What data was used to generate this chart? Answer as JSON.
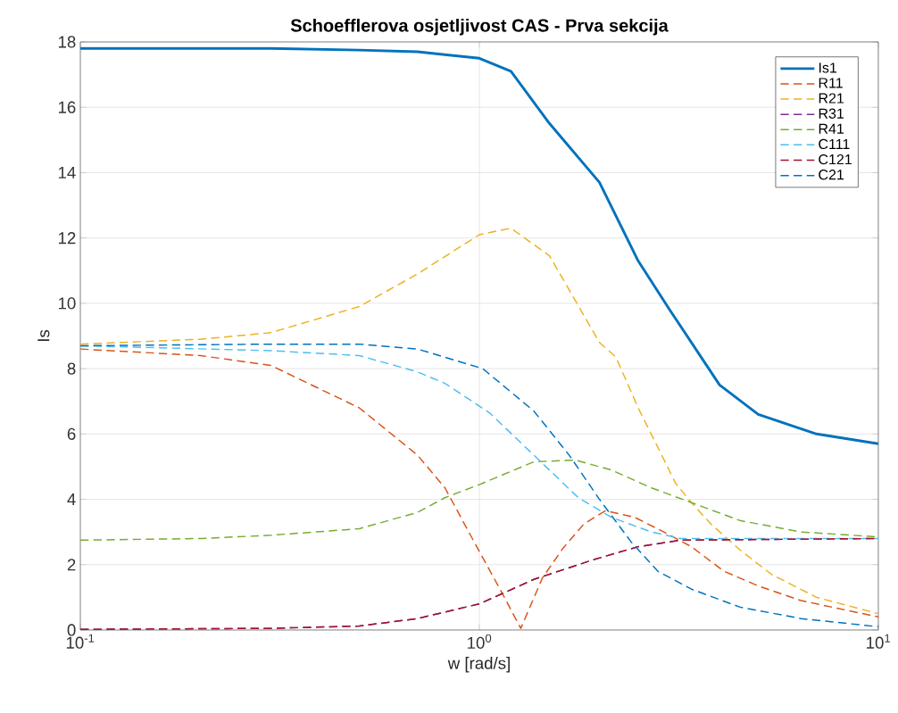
{
  "chart_data": {
    "type": "line",
    "title": "Schoefflerova osjetljivost CAS - Prva sekcija",
    "xlabel": "w [rad/s]",
    "ylabel": "Is",
    "log": "x",
    "grid": true,
    "legend": "top right",
    "xlim": [
      0.1,
      10
    ],
    "xticks": [
      {
        "value": 0.1,
        "label": "10$^{-1}$"
      },
      {
        "value": 1,
        "label": "10$^{0}$"
      },
      {
        "value": 10,
        "label": "10$^{1}$"
      }
    ],
    "ylim": [
      0,
      18
    ],
    "yticks": [
      0,
      2,
      4,
      6,
      8,
      10,
      12,
      14,
      16,
      18
    ],
    "series": [
      {
        "name": "Is1",
        "color": "#0072bd",
        "line_style": "solid",
        "x": [
          0.1,
          0.3,
          0.5,
          0.7,
          1,
          1.2,
          1.5,
          2,
          2.5,
          3,
          4,
          5,
          7,
          10
        ],
        "values": [
          17.8,
          17.8,
          17.75,
          17.7,
          17.5,
          17.1,
          15.5,
          13.7,
          11.3,
          9.8,
          7.5,
          6.6,
          6.0,
          5.7
        ]
      },
      {
        "name": "R11",
        "color": "#d95319",
        "line_style": "dashed",
        "x": [
          0.1,
          0.2,
          0.3,
          0.5,
          0.7,
          0.82,
          0.97,
          1.15,
          1.27,
          1.44,
          1.62,
          1.83,
          2.07,
          2.45,
          2.9,
          3.4,
          4.1,
          5,
          6.4,
          10
        ],
        "values": [
          8.6,
          8.4,
          8.1,
          6.8,
          5.35,
          4.35,
          2.7,
          1.05,
          0.05,
          1.6,
          2.5,
          3.25,
          3.65,
          3.45,
          3.0,
          2.55,
          1.8,
          1.35,
          0.9,
          0.4
        ]
      },
      {
        "name": "R21",
        "color": "#edb120",
        "line_style": "dashed",
        "x": [
          0.1,
          0.2,
          0.3,
          0.5,
          0.7,
          1,
          1.2,
          1.5,
          2,
          2.2,
          2.5,
          2.8,
          3.1,
          3.4,
          3.8,
          4.5,
          5.4,
          7,
          10
        ],
        "values": [
          8.75,
          8.9,
          9.1,
          9.9,
          10.9,
          12.1,
          12.3,
          11.45,
          8.8,
          8.35,
          6.8,
          5.6,
          4.5,
          3.9,
          3.25,
          2.45,
          1.7,
          1.0,
          0.5
        ]
      },
      {
        "name": "R31",
        "color": "#7e2f8e",
        "line_style": "dashed",
        "x": [
          0.1,
          0.3,
          0.5,
          0.7,
          1,
          1.37,
          1.93,
          2.5,
          3.2,
          10
        ],
        "values": [
          0.02,
          0.05,
          0.12,
          0.35,
          0.8,
          1.55,
          2.15,
          2.55,
          2.75,
          2.8
        ]
      },
      {
        "name": "R41",
        "color": "#77ac30",
        "line_style": "dashed",
        "x": [
          0.1,
          0.2,
          0.3,
          0.5,
          0.7,
          0.82,
          1,
          1.37,
          1.74,
          2.14,
          2.7,
          3.4,
          4.5,
          6.4,
          10
        ],
        "values": [
          2.75,
          2.8,
          2.9,
          3.1,
          3.6,
          4.05,
          4.45,
          5.15,
          5.2,
          4.9,
          4.35,
          3.9,
          3.35,
          3.0,
          2.85
        ]
      },
      {
        "name": "C111",
        "color": "#4dbeee",
        "line_style": "dashed",
        "x": [
          0.1,
          0.3,
          0.5,
          0.7,
          0.82,
          1.06,
          1.37,
          1.77,
          2.14,
          2.7,
          3.2,
          10
        ],
        "values": [
          8.7,
          8.55,
          8.4,
          7.9,
          7.55,
          6.65,
          5.35,
          4.05,
          3.45,
          3.0,
          2.8,
          2.8
        ]
      },
      {
        "name": "C121",
        "color": "#a2142f",
        "line_style": "dashed",
        "x": [
          0.1,
          0.3,
          0.5,
          0.7,
          1,
          1.37,
          1.93,
          2.5,
          3.2,
          10
        ],
        "values": [
          0.02,
          0.05,
          0.12,
          0.35,
          0.8,
          1.55,
          2.15,
          2.55,
          2.75,
          2.8
        ]
      },
      {
        "name": "C21",
        "color": "#0072bd",
        "line_style": "dashed",
        "x": [
          0.1,
          0.3,
          0.5,
          0.7,
          1.02,
          1.37,
          1.68,
          2,
          2.4,
          2.8,
          3.4,
          4.5,
          6.4,
          10
        ],
        "values": [
          8.7,
          8.75,
          8.75,
          8.6,
          8.0,
          6.7,
          5.35,
          4.0,
          2.7,
          1.8,
          1.25,
          0.7,
          0.35,
          0.1
        ]
      }
    ]
  }
}
